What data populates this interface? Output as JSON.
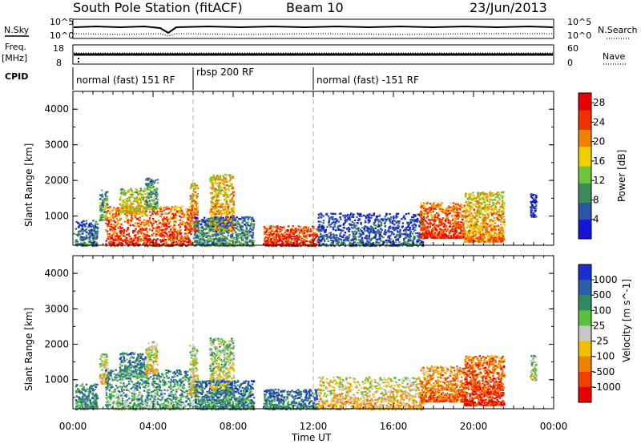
{
  "header": {
    "station": "South Pole Station (fitACF)",
    "beam": "Beam 10",
    "date": "23/Jun/2013"
  },
  "top_panels": {
    "nsky_label": "N.Sky",
    "nsearch_label": "N.Search",
    "noise_ticks": [
      "10^5",
      "10^0"
    ],
    "freq_label": "Freq.",
    "freq_unit": "[MHz]",
    "freq_ticks": [
      "18",
      "8"
    ],
    "nave_label": "Nave",
    "nave_ticks": [
      "60",
      "0"
    ],
    "cpid_label": "CPID",
    "cpid_segments": [
      {
        "label": "normal (fast) 151 RF",
        "start_h": 0,
        "end_h": 6.0
      },
      {
        "label": "rbsp 200 RF",
        "start_h": 6.0,
        "end_h": 12.0
      },
      {
        "label": "normal (fast) -151 RF",
        "start_h": 12.0,
        "end_h": 24.0
      }
    ]
  },
  "chart_data": [
    {
      "type": "heatmap",
      "panel": "power",
      "xlabel": "",
      "ylabel": "Slant Range [km]",
      "yticks": [
        "1000",
        "2000",
        "3000",
        "4000"
      ],
      "xlim": [
        0,
        24
      ],
      "ylim": [
        180,
        4500
      ],
      "colorbar_label": "Power [dB]",
      "colorbar_ticks": [
        "4",
        "8",
        "12",
        "16",
        "20",
        "24",
        "28"
      ],
      "colorbar_range": [
        0,
        30
      ],
      "colors": [
        "#1515d8",
        "#2c54a8",
        "#3e8a5a",
        "#70c43a",
        "#f0d000",
        "#f08000",
        "#f03000",
        "#e80000"
      ],
      "echo_regions": [
        {
          "t0": 0.1,
          "t1": 1.2,
          "r0": 180,
          "r1": 900,
          "level": 0.3
        },
        {
          "t0": 1.3,
          "t1": 1.7,
          "r0": 900,
          "r1": 1750,
          "level": 0.45
        },
        {
          "t0": 1.6,
          "t1": 5.9,
          "r0": 180,
          "r1": 1300,
          "level": 0.85
        },
        {
          "t0": 2.3,
          "t1": 3.6,
          "r0": 1100,
          "r1": 1800,
          "level": 0.6
        },
        {
          "t0": 3.6,
          "t1": 4.2,
          "r0": 1200,
          "r1": 2100,
          "level": 0.4
        },
        {
          "t0": 5.8,
          "t1": 6.2,
          "r0": 600,
          "r1": 2000,
          "level": 0.75
        },
        {
          "t0": 6.8,
          "t1": 8.0,
          "r0": 600,
          "r1": 2200,
          "level": 0.7
        },
        {
          "t0": 6.0,
          "t1": 9.0,
          "r0": 180,
          "r1": 1000,
          "level": 0.35
        },
        {
          "t0": 9.5,
          "t1": 12.2,
          "r0": 180,
          "r1": 750,
          "level": 0.9
        },
        {
          "t0": 12.2,
          "t1": 17.5,
          "r0": 180,
          "r1": 1100,
          "level": 0.25
        },
        {
          "t0": 17.3,
          "t1": 19.5,
          "r0": 400,
          "r1": 1400,
          "level": 0.85
        },
        {
          "t0": 19.5,
          "t1": 21.5,
          "r0": 300,
          "r1": 1700,
          "level": 0.7
        },
        {
          "t0": 22.8,
          "t1": 23.1,
          "r0": 1000,
          "r1": 1700,
          "level": 0.2
        }
      ]
    },
    {
      "type": "heatmap",
      "panel": "velocity",
      "xlabel": "Time UT",
      "ylabel": "Slant Range [km]",
      "yticks": [
        "1000",
        "2000",
        "3000",
        "4000"
      ],
      "xticks": [
        "00:00",
        "04:00",
        "08:00",
        "12:00",
        "16:00",
        "20:00",
        "00:00"
      ],
      "xlim": [
        0,
        24
      ],
      "ylim": [
        180,
        4500
      ],
      "colorbar_label": "Velocity [m s^-1]",
      "colorbar_ticks": [
        "1000",
        "500",
        "100",
        "25",
        "-25",
        "-100",
        "-500",
        "-1000"
      ],
      "colors": [
        "#1b2fd0",
        "#2a5fa8",
        "#2f8a60",
        "#5ac040",
        "#c8c8c8",
        "#f0c000",
        "#f08000",
        "#f04000",
        "#e80000"
      ],
      "echo_regions": [
        {
          "t0": 0.1,
          "t1": 1.2,
          "r0": 180,
          "r1": 900,
          "level": 0.35
        },
        {
          "t0": 1.3,
          "t1": 1.7,
          "r0": 900,
          "r1": 1750,
          "level": 0.6
        },
        {
          "t0": 1.6,
          "t1": 5.9,
          "r0": 180,
          "r1": 1300,
          "level": 0.4
        },
        {
          "t0": 2.3,
          "t1": 3.6,
          "r0": 1100,
          "r1": 1800,
          "level": 0.35
        },
        {
          "t0": 3.6,
          "t1": 4.2,
          "r0": 1200,
          "r1": 2100,
          "level": 0.6
        },
        {
          "t0": 5.8,
          "t1": 6.2,
          "r0": 600,
          "r1": 2000,
          "level": 0.6
        },
        {
          "t0": 6.8,
          "t1": 8.0,
          "r0": 600,
          "r1": 2200,
          "level": 0.55
        },
        {
          "t0": 6.0,
          "t1": 9.0,
          "r0": 180,
          "r1": 1000,
          "level": 0.3
        },
        {
          "t0": 9.5,
          "t1": 12.2,
          "r0": 180,
          "r1": 750,
          "level": 0.3
        },
        {
          "t0": 12.2,
          "t1": 17.5,
          "r0": 180,
          "r1": 1100,
          "level": 0.65
        },
        {
          "t0": 17.3,
          "t1": 19.5,
          "r0": 400,
          "r1": 1400,
          "level": 0.8
        },
        {
          "t0": 19.5,
          "t1": 21.5,
          "r0": 300,
          "r1": 1700,
          "level": 0.9
        },
        {
          "t0": 22.8,
          "t1": 23.1,
          "r0": 1000,
          "r1": 1700,
          "level": 0.55
        }
      ]
    }
  ]
}
